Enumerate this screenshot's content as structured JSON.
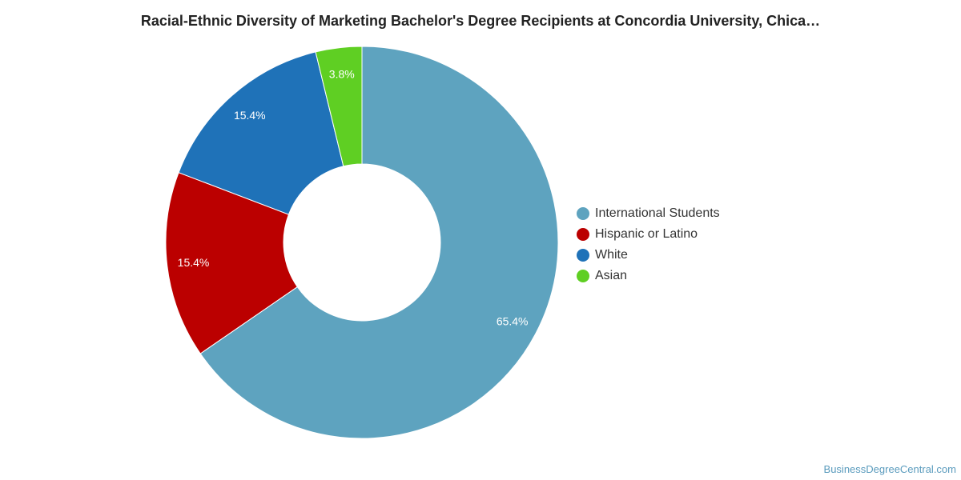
{
  "chart_data": {
    "type": "pie",
    "title": "Racial-Ethnic Diversity of Marketing Bachelor's Degree Recipients at Concordia University, Chica…",
    "categories": [
      "International Students",
      "Hispanic or Latino",
      "White",
      "Asian"
    ],
    "values": [
      65.4,
      15.4,
      15.4,
      3.8
    ],
    "labels": [
      "65.4%",
      "15.4%",
      "15.4%",
      "3.8%"
    ],
    "colors": [
      "#5ea3bf",
      "#bb0000",
      "#1f72b8",
      "#5fcf23"
    ],
    "donut": true,
    "legend_position": "right"
  },
  "credit": "BusinessDegreeCentral.com"
}
